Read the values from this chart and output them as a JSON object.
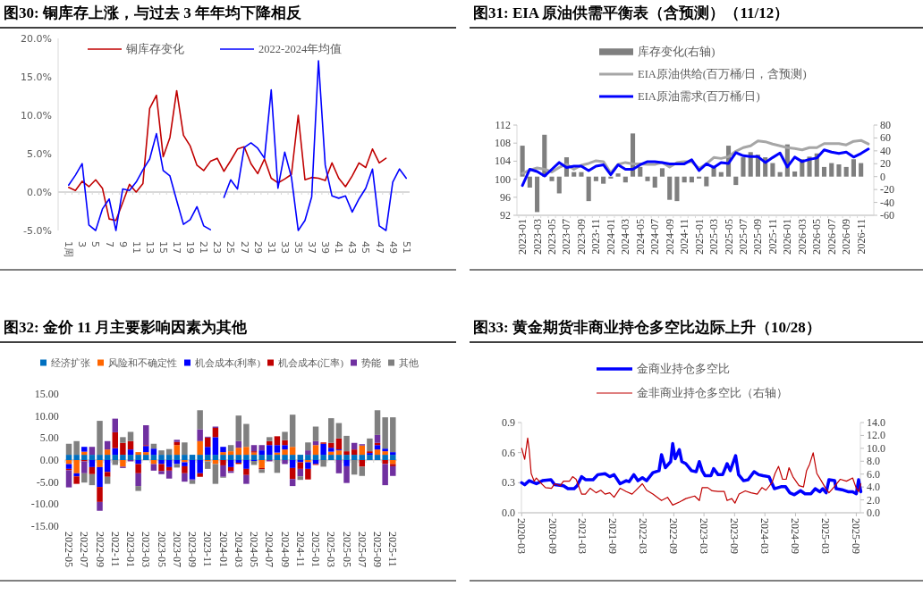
{
  "chart_data": [
    {
      "type": "line",
      "title": "图30:  铜库存上涨，与过去 3 年年均下降相反",
      "categories": [
        "1周",
        null,
        "3",
        null,
        "5",
        null,
        "7",
        null,
        "9",
        null,
        "11",
        null,
        "13",
        null,
        "15",
        null,
        "17",
        null,
        "19",
        null,
        "21",
        null,
        "23",
        null,
        "25",
        null,
        "27",
        null,
        "29",
        null,
        "31",
        null,
        "33",
        null,
        "35",
        null,
        "37",
        null,
        "39",
        null,
        "41",
        null,
        "43",
        null,
        "45",
        null,
        "47",
        null,
        "49",
        null,
        "51"
      ],
      "series": [
        {
          "name": "铜库存变化",
          "color": "#c00000",
          "values": [
            0.6,
            0.2,
            1.4,
            0.7,
            1.6,
            0.5,
            -3.5,
            -3.7,
            -1.4,
            1.0,
            0.0,
            1.1,
            10.9,
            12.6,
            4.6,
            7.1,
            13.2,
            7.4,
            6.0,
            3.5,
            2.8,
            4.0,
            4.4,
            2.7,
            4.1,
            5.6,
            5.9,
            3.7,
            2.4,
            4.3,
            1.8,
            1.2,
            1.7,
            2.3,
            10.0,
            1.6,
            1.9,
            1.8,
            1.5,
            3.8,
            1.8,
            0.7,
            2.1,
            3.8,
            3.2,
            5.6,
            3.8,
            4.4,
            null,
            null,
            null
          ]
        },
        {
          "name": "2022-2024年均值",
          "color": "#0000ff",
          "values": [
            0.9,
            2.2,
            3.7,
            -4.3,
            -5.0,
            -2.2,
            -0.9,
            -5.0,
            0.4,
            0.2,
            1.3,
            2.9,
            4.3,
            7.6,
            2.8,
            2.1,
            -1.1,
            -4.2,
            -3.6,
            -1.9,
            -4.4,
            -4.9,
            null,
            -0.7,
            1.6,
            0.4,
            5.8,
            6.4,
            5.7,
            4.4,
            13.3,
            0.5,
            5.2,
            1.9,
            -5.0,
            -3.7,
            -0.6,
            17.1,
            3.5,
            -0.5,
            -0.8,
            -0.5,
            -2.6,
            -0.9,
            0.5,
            3.0,
            -4.4,
            -5.0,
            1.3,
            3.0,
            1.8
          ]
        }
      ],
      "ylim": [
        -5,
        20
      ],
      "yticks": [
        {
          "value": -5,
          "label": "-5.0%"
        },
        {
          "value": 0,
          "label": "0.0%"
        },
        {
          "value": 5,
          "label": "5.0%"
        },
        {
          "value": 10,
          "label": "10.0%"
        },
        {
          "value": 15,
          "label": "15.0%"
        },
        {
          "value": 20,
          "label": "20.0%"
        }
      ],
      "legend": "top"
    },
    {
      "type": "line",
      "title": "图31:  EIA 原油供需平衡表（含预测）（11/12）",
      "categories": [
        "2023-01",
        null,
        "2023-03",
        null,
        "2023-05",
        null,
        "2023-07",
        null,
        "2023-09",
        null,
        "2023-11",
        null,
        "2024-01",
        null,
        "2024-03",
        null,
        "2024-05",
        null,
        "2024-07",
        null,
        "2024-09",
        null,
        "2024-11",
        null,
        "2025-01",
        null,
        "2025-03",
        null,
        "2025-05",
        null,
        "2025-07",
        null,
        "2025-09",
        null,
        "2025-11",
        null,
        "2026-01",
        null,
        "2026-03",
        null,
        "2026-05",
        null,
        "2026-07",
        null,
        "2026-09",
        null,
        "2026-11",
        null
      ],
      "series": [
        {
          "name": "库存变化(右轴)",
          "type": "bar",
          "axis": "y2",
          "color": "#7f7f7f",
          "values": [
            48,
            -17,
            -55,
            65,
            -7,
            -26,
            30,
            7,
            7,
            -38,
            -7,
            -11,
            -3,
            5,
            -9,
            67,
            15,
            -7,
            -17,
            13,
            -36,
            -38,
            -9,
            -9,
            -3,
            -15,
            15,
            7,
            48,
            -13,
            30,
            38,
            34,
            30,
            21,
            7,
            50,
            8,
            27,
            31,
            36,
            15,
            21,
            19,
            15,
            27,
            21,
            null
          ]
        },
        {
          "name": "EIA原油供给(百万桶/日，含预测)",
          "color": "#a6a6a6",
          "values": [
            101.3,
            102.0,
            102.5,
            102.2,
            101.6,
            102.6,
            103.3,
            102.2,
            103.1,
            103.5,
            104.1,
            103.9,
            101.4,
            103.3,
            103.7,
            103.4,
            103.4,
            103.3,
            103.3,
            103.7,
            102.7,
            103.7,
            103.9,
            103.9,
            102.4,
            103.4,
            104.8,
            104.6,
            105.0,
            106.2,
            107.0,
            107.4,
            108.5,
            108.3,
            107.8,
            107.4,
            107.0,
            106.8,
            106.5,
            107.0,
            107.0,
            107.9,
            107.9,
            107.9,
            107.6,
            108.4,
            108.6,
            107.8
          ]
        },
        {
          "name": "EIA原油需求(百万桶/日)",
          "color": "#0000ff",
          "values": [
            98.6,
            102.2,
            101.7,
            100.7,
            102.2,
            103.7,
            102.6,
            102.9,
            102.9,
            101.9,
            102.9,
            103.2,
            101.0,
            103.2,
            102.2,
            102.2,
            103.2,
            103.9,
            103.9,
            103.7,
            103.4,
            103.4,
            103.4,
            104.3,
            101.9,
            103.4,
            102.6,
            103.7,
            103.5,
            105.9,
            105.2,
            105.0,
            105.0,
            103.7,
            104.8,
            105.8,
            102.7,
            104.9,
            103.9,
            104.4,
            104.7,
            106.5,
            106.0,
            105.7,
            106.0,
            104.9,
            105.7,
            106.7
          ]
        }
      ],
      "ylim": [
        92,
        112
      ],
      "yticks": [
        92,
        96,
        100,
        104,
        108,
        112
      ],
      "y2lim": [
        -60,
        80
      ],
      "y2ticks": [
        -60,
        -40,
        -20,
        0,
        20,
        40,
        60,
        80
      ],
      "legend": "top"
    },
    {
      "type": "bar",
      "stacked": true,
      "title": "图32:  金价 11 月主要影响因素为其他",
      "categories": [
        "2022-05",
        null,
        "2022-07",
        null,
        "2022-09",
        null,
        "2022-11",
        null,
        "2023-01",
        null,
        "2023-03",
        null,
        "2023-05",
        null,
        "2023-07",
        null,
        "2023-09",
        null,
        "2023-11",
        null,
        "2024-01",
        null,
        "2024-03",
        null,
        "2024-05",
        null,
        "2024-07",
        null,
        "2024-09",
        null,
        "2024-11",
        null,
        "2025-01",
        null,
        "2025-03",
        null,
        "2025-05",
        null,
        "2025-07",
        null,
        "2025-09",
        null,
        "2025-11"
      ],
      "series": [
        {
          "name": "经济扩张",
          "color": "#0070c0",
          "values": [
            1.2,
            1.2,
            1.2,
            1.2,
            1.2,
            1.2,
            1.2,
            1.2,
            1.2,
            1.2,
            1.2,
            1.2,
            1.2,
            1.2,
            1.2,
            1.2,
            1.2,
            1.2,
            1.2,
            1.2,
            1.2,
            1.2,
            1.2,
            1.2,
            1.2,
            1.2,
            1.2,
            1.2,
            1.2,
            1.2,
            1.2,
            1.2,
            1.2,
            1.2,
            1.2,
            1.2,
            1.2,
            1.2,
            1.2,
            1.2,
            1.2,
            1.2,
            1.2
          ]
        },
        {
          "name": "风险和不确定性",
          "color": "#ff6600",
          "values": [
            -0.9,
            -3.0,
            0.7,
            0,
            -1.6,
            1.2,
            0,
            -1.5,
            0,
            0.6,
            0.6,
            -0.9,
            0,
            0,
            2.2,
            -0.5,
            0,
            3.1,
            -0.3,
            -0.9,
            0.6,
            0.8,
            1.6,
            1.8,
            0.5,
            -1.8,
            0,
            0.5,
            1.2,
            1.8,
            0,
            -0.5,
            2.2,
            0,
            0.7,
            1.0,
            0,
            0,
            2.1,
            0,
            1.2,
            0.8,
            -0.9
          ]
        },
        {
          "name": "机会成本(利率)",
          "color": "#0000ff",
          "values": [
            -1.1,
            -0.7,
            1.1,
            -1.6,
            -4.5,
            -2.7,
            1.5,
            0,
            1.2,
            -0.9,
            1.4,
            1.4,
            -0.9,
            -1.6,
            -0.9,
            -0.9,
            -4.4,
            -3.0,
            1.8,
            4.0,
            1.2,
            -1.6,
            -0.6,
            -2.0,
            -0.2,
            1.0,
            2.2,
            1.7,
            1.0,
            -1.8,
            -0.5,
            -1.5,
            -0.9,
            2.5,
            0.9,
            0.2,
            -1.4,
            0,
            0,
            0.4,
            1.0,
            0.6,
            0.6
          ]
        },
        {
          "name": "机会成本(汇率)",
          "color": "#c00000",
          "values": [
            -0.3,
            -1.7,
            -0.3,
            -1.6,
            -3.4,
            -1.1,
            3.6,
            2.7,
            1.9,
            -2.1,
            0.2,
            0,
            -1.6,
            -0.8,
            0.7,
            -1.6,
            0,
            -0.8,
            2.1,
            2.1,
            -1.2,
            -0.9,
            -0.3,
            -1.4,
            0.3,
            -0.3,
            0.9,
            2.0,
            1.1,
            -2.5,
            -1.5,
            -2.4,
            -0.2,
            0.3,
            1.1,
            2.5,
            0.8,
            1.2,
            -1.5,
            0.4,
            0.5,
            -0.9,
            -0.5
          ]
        },
        {
          "name": "势能",
          "color": "#7030a0",
          "values": [
            -3.9,
            0,
            -2.7,
            1.8,
            -2.0,
            1.9,
            3.1,
            -0.3,
            -0.3,
            -2.9,
            4.5,
            -1.5,
            -0.7,
            -1.8,
            0.5,
            -1.9,
            -0.2,
            2.7,
            0.2,
            0.3,
            -2.6,
            -0.4,
            1.5,
            -2.0,
            1.4,
            1.2,
            -0.3,
            0,
            -0.9,
            -1.6,
            -1.7,
            1.0,
            0.9,
            null,
            0,
            -3.0,
            -3.8,
            1.5,
            0.3,
            0,
            1.8,
            -4.8,
            -2.2
          ]
        },
        {
          "name": "其他",
          "color": "#808080",
          "values": [
            2.5,
            3.1,
            -2.1,
            -2.5,
            7.7,
            -1.6,
            -1.1,
            1.3,
            2.1,
            -1.1,
            0,
            1.1,
            1.0,
            1.3,
            -0.8,
            2.8,
            -0.8,
            4.3,
            -1.7,
            -4.5,
            -0.2,
            1.4,
            5.8,
            5.2,
            -0.9,
            -0.8,
            0.9,
            -2.9,
            1.9,
            7.3,
            -0.8,
            1.8,
            3.3,
            -1.5,
            5.6,
            3.5,
            3.5,
            -3.3,
            -2.1,
            2.9,
            5.6,
            7.1,
            7.9
          ]
        }
      ],
      "ylim": [
        -15,
        15
      ],
      "yticks": [
        {
          "value": -15,
          "label": "-15.00"
        },
        {
          "value": -10,
          "label": "-10.00"
        },
        {
          "value": -5,
          "label": "-5.00"
        },
        {
          "value": 0,
          "label": "0.00"
        },
        {
          "value": 5,
          "label": "5.00"
        },
        {
          "value": 10,
          "label": "10.00"
        },
        {
          "value": 15,
          "label": "15.00"
        }
      ],
      "legend": "top"
    },
    {
      "type": "line",
      "title": "图33:  黄金期货非商业持仓多空比边际上升（10/28）",
      "series": [
        {
          "name": "金商业持仓多空比",
          "color": "#0000ff",
          "x": [
            "2020-03-01",
            "2020-03-19",
            "2020-04-15",
            "2020-05-28",
            "2020-07-04",
            "2020-08-24",
            "2020-09-15",
            "2020-11-07",
            "2020-12-04",
            "2021-01-10",
            "2021-01-28",
            "2021-02-24",
            "2021-03-19",
            "2021-05-04",
            "2021-06-01",
            "2021-07-15",
            "2021-08-12",
            "2021-09-07",
            "2021-10-13",
            "2021-11-19",
            "2021-12-06",
            "2022-01-04",
            "2022-01-28",
            "2022-02-24",
            "2022-03-21",
            "2022-04-28",
            "2022-06-04",
            "2022-06-19",
            "2022-07-12",
            "2022-08-13",
            "2022-08-25",
            "2022-09-09",
            "2022-10-04",
            "2022-10-19",
            "2022-11-12",
            "2022-12-16",
            "2023-01-13",
            "2023-02-01",
            "2023-02-18",
            "2023-03-07",
            "2023-04-12",
            "2023-04-28",
            "2023-05-25",
            "2023-06-21",
            "2023-07-18",
            "2023-08-06",
            "2023-09-07",
            "2023-09-25",
            "2023-10-25",
            "2023-11-21",
            "2023-12-27",
            "2024-01-24",
            "2024-02-19",
            "2024-03-25",
            "2024-04-27",
            "2024-06-06",
            "2024-07-03",
            "2024-07-28",
            "2024-08-25",
            "2024-10-01",
            "2024-10-28",
            "2024-12-03",
            "2024-12-28",
            "2025-01-25",
            "2025-02-12",
            "2025-03-04",
            "2025-03-21",
            "2025-04-24",
            "2025-05-03",
            "2025-06-07",
            "2025-07-13",
            "2025-08-10",
            "2025-09-01",
            "2025-09-15",
            "2025-09-28"
          ],
          "values": [
            0.3,
            0.28,
            0.32,
            0.29,
            0.32,
            0.33,
            0.28,
            0.27,
            0.24,
            0.24,
            0.27,
            0.36,
            0.33,
            0.33,
            0.38,
            0.39,
            0.36,
            0.38,
            0.29,
            0.32,
            0.31,
            0.38,
            0.32,
            0.35,
            0.32,
            0.4,
            0.42,
            0.58,
            0.45,
            0.51,
            0.69,
            0.54,
            0.63,
            0.51,
            0.49,
            0.42,
            0.41,
            0.51,
            0.42,
            0.37,
            0.37,
            0.44,
            0.38,
            0.38,
            0.49,
            0.42,
            0.57,
            0.38,
            0.32,
            0.33,
            0.41,
            0.38,
            0.37,
            0.36,
            0.24,
            0.26,
            0.26,
            0.2,
            0.18,
            0.22,
            0.19,
            0.19,
            0.24,
            0.21,
            0.24,
            0.2,
            0.33,
            0.32,
            0.24,
            0.23,
            0.21,
            0.21,
            0.19,
            0.33,
            0.21
          ]
        },
        {
          "name": "金非商业持仓多空比（右轴）",
          "color": "#c00000",
          "axis": "y2",
          "x": [
            "2020-03-01",
            "2020-03-19",
            "2020-04-06",
            "2020-04-15",
            "2020-04-27",
            "2020-05-15",
            "2020-05-28",
            "2020-06-25",
            "2020-07-22",
            "2020-08-27",
            "2020-09-15",
            "2020-10-19",
            "2020-11-07",
            "2020-12-13",
            "2021-01-01",
            "2021-01-22",
            "2021-02-24",
            "2021-03-19",
            "2021-04-16",
            "2021-05-22",
            "2021-06-19",
            "2021-07-15",
            "2021-08-12",
            "2021-09-07",
            "2021-10-13",
            "2021-11-19",
            "2021-12-24",
            "2022-01-28",
            "2022-02-24",
            "2022-03-21",
            "2022-04-28",
            "2022-06-19",
            "2022-07-25",
            "2022-08-25",
            "2022-10-07",
            "2022-11-12",
            "2023-01-04",
            "2023-02-01",
            "2023-02-18",
            "2023-03-24",
            "2023-04-19",
            "2023-05-25",
            "2023-07-01",
            "2023-07-18",
            "2023-08-15",
            "2023-09-03",
            "2023-09-28",
            "2023-11-04",
            "2023-12-09",
            "2024-01-15",
            "2024-02-12",
            "2024-03-07",
            "2024-04-13",
            "2024-05-01",
            "2024-05-22",
            "2024-06-15",
            "2024-07-07",
            "2024-07-24",
            "2024-08-16",
            "2024-09-22",
            "2024-10-19",
            "2024-11-06",
            "2024-11-24",
            "2024-12-16",
            "2025-01-07",
            "2025-02-04",
            "2025-03-01",
            "2025-03-21",
            "2025-04-24",
            "2025-05-28",
            "2025-07-04",
            "2025-08-10",
            "2025-09-01",
            "2025-09-15",
            "2025-09-28"
          ],
          "values": [
            10.0,
            8.3,
            11.6,
            9.8,
            6.1,
            4.9,
            5.4,
            4.6,
            3.9,
            3.8,
            4.5,
            4.2,
            4.9,
            4.9,
            5.6,
            5.2,
            2.9,
            2.9,
            3.8,
            3.1,
            3.5,
            2.9,
            3.1,
            2.4,
            3.8,
            3.3,
            2.9,
            3.8,
            4.5,
            3.5,
            2.9,
            1.9,
            2.4,
            1.2,
            1.7,
            2.2,
            2.6,
            1.9,
            3.9,
            3.9,
            3.4,
            3.3,
            3.3,
            1.9,
            2.2,
            1.5,
            2.9,
            3.4,
            3.1,
            2.9,
            3.9,
            3.5,
            4.7,
            6.1,
            7.2,
            5.2,
            5.2,
            7.0,
            5.6,
            4.2,
            4.0,
            6.5,
            7.5,
            9.3,
            6.1,
            4.9,
            3.8,
            3.1,
            4.1,
            5.2,
            4.9,
            5.4,
            3.8,
            3.3,
            4.5
          ]
        }
      ],
      "xlim": [
        "2020-03-01",
        "2025-10-01"
      ],
      "xticks": [
        "2020-03",
        "2020-09",
        "2021-03",
        "2021-09",
        "2022-03",
        "2022-09",
        "2023-03",
        "2023-09",
        "2024-03",
        "2024-09",
        "2025-03",
        "2025-09"
      ],
      "ylim": [
        0,
        0.9
      ],
      "yticks": [
        {
          "value": 0,
          "label": "0.0"
        },
        {
          "value": 0.3,
          "label": "0.3"
        },
        {
          "value": 0.6,
          "label": "0.6"
        },
        {
          "value": 0.9,
          "label": "0.9"
        }
      ],
      "y2lim": [
        0,
        14
      ],
      "y2ticks": [
        {
          "value": 0,
          "label": "0.0"
        },
        {
          "value": 2,
          "label": "2.0"
        },
        {
          "value": 4,
          "label": "4.0"
        },
        {
          "value": 6,
          "label": "6.0"
        },
        {
          "value": 8,
          "label": "8.0"
        },
        {
          "value": 10,
          "label": "10.0"
        },
        {
          "value": 12,
          "label": "12.0"
        },
        {
          "value": 14,
          "label": "14.0"
        }
      ],
      "legend": "top"
    }
  ]
}
